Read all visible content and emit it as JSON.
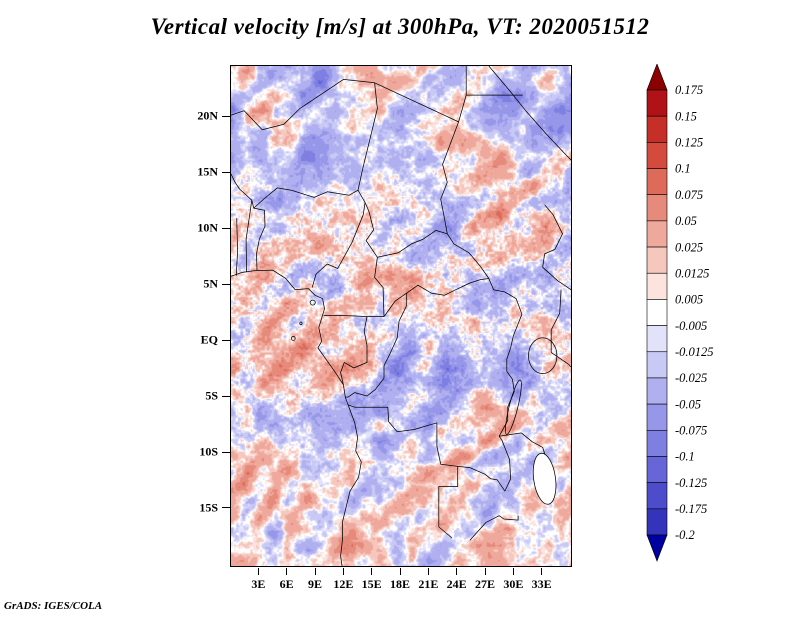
{
  "title": "Vertical velocity [m/s] at 300hPa, VT: 2020051512",
  "footer": "GrADS: IGES/COLA",
  "axes": {
    "lat_ticks": [
      "20N",
      "15N",
      "10N",
      "5N",
      "EQ",
      "5S",
      "10S",
      "15S"
    ],
    "lon_ticks": [
      "3E",
      "6E",
      "9E",
      "12E",
      "15E",
      "18E",
      "21E",
      "24E",
      "27E",
      "30E",
      "33E"
    ]
  },
  "colorbar": {
    "labels": [
      "0.175",
      "0.15",
      "0.125",
      "0.1",
      "0.075",
      "0.05",
      "0.025",
      "0.0125",
      "0.005",
      "-0.005",
      "-0.0125",
      "-0.025",
      "-0.05",
      "-0.075",
      "-0.1",
      "-0.125",
      "-0.175",
      "-0.2"
    ],
    "colors": [
      "#8b0000",
      "#b11218",
      "#c62f28",
      "#d44a3c",
      "#de6a5a",
      "#e68a7b",
      "#efa99c",
      "#f6c7bd",
      "#fce3dd",
      "#ffffff",
      "#e2e2fb",
      "#c9c9f6",
      "#b0b0f0",
      "#9797ea",
      "#7f7fe2",
      "#6666d8",
      "#4d4dcc",
      "#3333bb",
      "#0000a0"
    ]
  },
  "chart_data": {
    "type": "heatmap",
    "title": "Vertical velocity [m/s] at 300hPa, VT: 2020051512",
    "variable": "Vertical velocity",
    "units": "m/s",
    "pressure_level": "300hPa",
    "valid_time": "2020051512",
    "x_tick_labels": [
      "3E",
      "6E",
      "9E",
      "12E",
      "15E",
      "18E",
      "21E",
      "24E",
      "27E",
      "30E",
      "33E"
    ],
    "y_tick_labels": [
      "20N",
      "15N",
      "10N",
      "5N",
      "EQ",
      "5S",
      "10S",
      "15S"
    ],
    "xlim_deg_east": [
      0,
      36
    ],
    "ylim_deg_north": [
      -20,
      25
    ],
    "color_levels": [
      -0.2,
      -0.175,
      -0.125,
      -0.1,
      -0.075,
      -0.05,
      -0.025,
      -0.0125,
      -0.005,
      0.005,
      0.0125,
      0.025,
      0.05,
      0.075,
      0.1,
      0.125,
      0.15,
      0.175
    ],
    "palette_top_to_bottom": [
      "#8b0000",
      "#b11218",
      "#c62f28",
      "#d44a3c",
      "#de6a5a",
      "#e68a7b",
      "#efa99c",
      "#f6c7bd",
      "#fce3dd",
      "#ffffff",
      "#e2e2fb",
      "#c9c9f6",
      "#b0b0f0",
      "#9797ea",
      "#7f7fe2",
      "#6666d8",
      "#4d4dcc",
      "#3333bb",
      "#0000a0"
    ],
    "legend_position": "right",
    "projection": "lat-lon map of central Africa with country borders",
    "description": "Noisy field of alternating upward (red) and downward (blue) vertical-velocity cells over Africa"
  }
}
